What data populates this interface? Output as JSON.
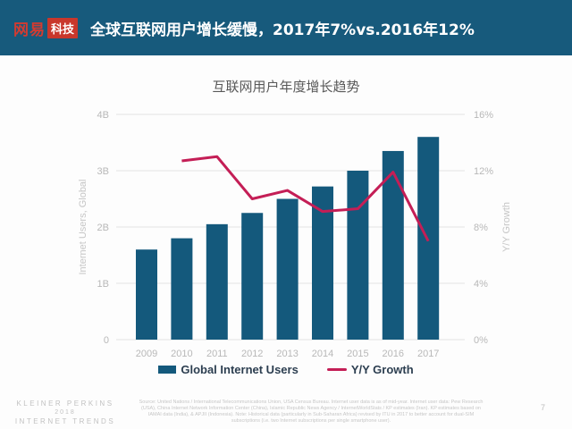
{
  "header": {
    "logo": {
      "brand": "网易",
      "suffix": "科技"
    },
    "title": "全球互联网用户增长缓慢，2017年7%vs.2016年12%",
    "bg_color": "#175a7c",
    "logo_red": "#c9372c"
  },
  "chart_data": {
    "type": "bar",
    "title": "互联网用户年度增长趋势",
    "categories": [
      "2009",
      "2010",
      "2011",
      "2012",
      "2013",
      "2014",
      "2015",
      "2016",
      "2017"
    ],
    "series": [
      {
        "name": "Global Internet Users",
        "type": "bar",
        "axis": "left",
        "color": "#14597c",
        "values": [
          1.6,
          1.8,
          2.05,
          2.25,
          2.5,
          2.72,
          3.0,
          3.35,
          3.6
        ]
      },
      {
        "name": "Y/Y Growth",
        "type": "line",
        "axis": "right",
        "color": "#c41e56",
        "values": [
          null,
          12.7,
          13.0,
          10.0,
          10.6,
          9.1,
          9.3,
          11.9,
          7.0
        ]
      }
    ],
    "left_axis": {
      "label": "Internet Users, Global",
      "min": 0,
      "max": 4,
      "ticks": [
        "0",
        "1B",
        "2B",
        "3B",
        "4B"
      ]
    },
    "right_axis": {
      "label": "Y/Y Growth",
      "min": 0,
      "max": 16,
      "ticks": [
        "0%",
        "4%",
        "8%",
        "12%",
        "16%"
      ]
    },
    "grid": true,
    "legend_position": "bottom",
    "tick_color": "#b8b8b8",
    "axis_label_color": "#c6c6c6",
    "grid_color": "#e3e3e3"
  },
  "footer": {
    "brand_lines": [
      "KLEINER PERKINS",
      "2018",
      "INTERNET TRENDS"
    ],
    "source_text": "Source: United Nations / International Telecommunications Union, USA Census Bureau. Internet user data is as of mid-year. Internet user data: Pew Research (USA), China Internet Network Information Center (China), Islamic Republic News Agency / InternetWorldStats / KP estimates (Iran). KP estimates based on IAMAI data (India), & APJII (Indonesia). Note: Historical data (particularly in Sub-Saharan Africa) revised by ITU in 2017 to better account for dual-SIM subscriptions (i.e. two Internet subscriptions per single smartphone user).",
    "page_number": "7"
  }
}
